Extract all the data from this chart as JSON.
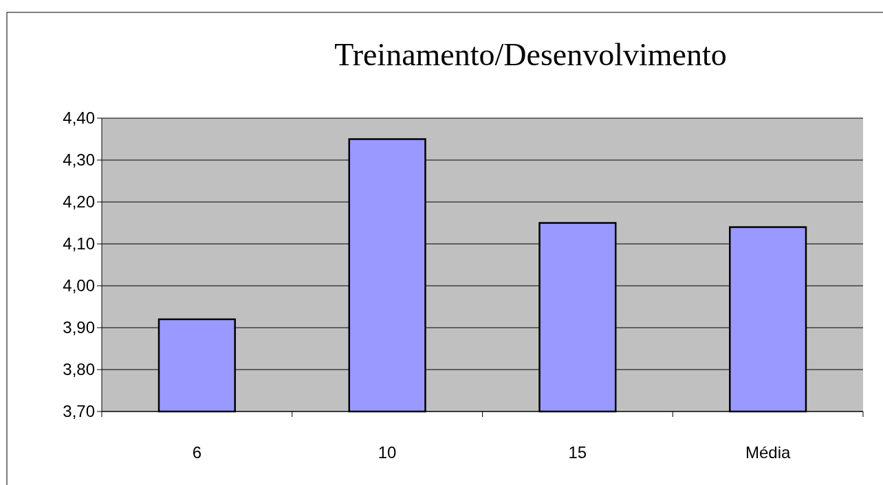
{
  "chart_data": {
    "type": "bar",
    "title": "Treinamento/Desenvolvimento",
    "categories": [
      "6",
      "10",
      "15",
      "Média"
    ],
    "values": [
      3.92,
      4.35,
      4.15,
      4.14
    ],
    "color": "#9999ff",
    "ylim": [
      3.7,
      4.4
    ],
    "yticks": [
      {
        "value": 3.7,
        "label": "3,70"
      },
      {
        "value": 3.8,
        "label": "3,80"
      },
      {
        "value": 3.9,
        "label": "3,90"
      },
      {
        "value": 4.0,
        "label": "4,00"
      },
      {
        "value": 4.1,
        "label": "4,10"
      },
      {
        "value": 4.2,
        "label": "4,20"
      },
      {
        "value": 4.3,
        "label": "4,30"
      },
      {
        "value": 4.4,
        "label": "4,40"
      }
    ],
    "grid": "y"
  }
}
